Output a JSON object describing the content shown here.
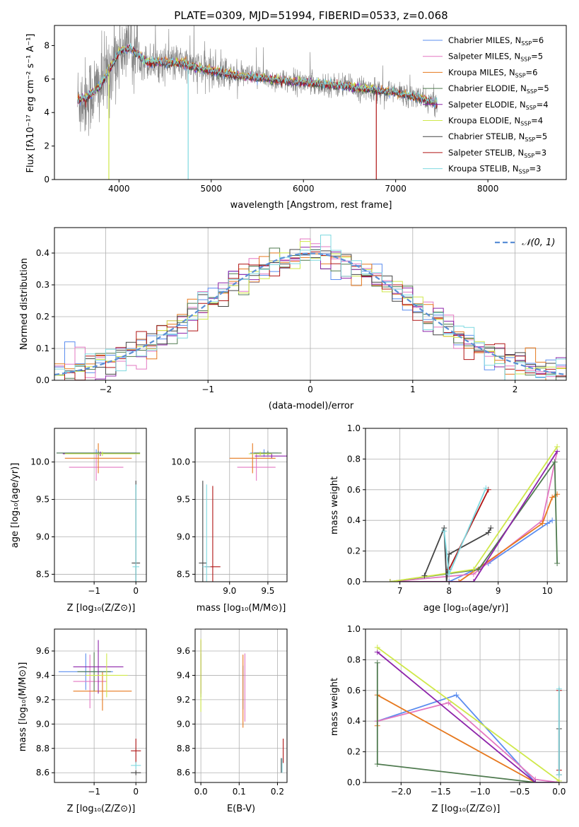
{
  "figure": {
    "title": "PLATE=0309, MJD=51994, FIBERID=0533, z=0.068"
  },
  "colors": {
    "chabrier_miles": "#5b8def",
    "salpeter_miles": "#e377c2",
    "kroupa_miles": "#e6781e",
    "chabrier_elodie": "#4f7a4f",
    "salpeter_elodie": "#8e24aa",
    "kroupa_elodie": "#cfe84a",
    "chabrier_stelib": "#444444",
    "salpeter_stelib": "#b01515",
    "kroupa_stelib": "#7fd9e0",
    "data": "#808080",
    "gaussian": "#5b8fd6",
    "grid": "#b0b0b0"
  },
  "chart_data": [
    {
      "id": "spectrum",
      "type": "line",
      "title": "PLATE=0309, MJD=51994, FIBERID=0533, z=0.068",
      "xlabel": "wavelength [Angstrom, rest frame]",
      "ylabel": "Flux [fλ10⁻¹⁷ erg cm⁻² s⁻¹ A⁻¹]",
      "xlim": [
        3300,
        8850
      ],
      "ylim": [
        0,
        9.2
      ],
      "xticks": [
        4000,
        5000,
        6000,
        7000,
        8000
      ],
      "yticks": [
        0,
        2,
        4,
        6,
        8
      ],
      "grid": false,
      "legend_position": "top-right",
      "legend": [
        {
          "name": "Chabrier MILES, N_SSP=6",
          "color_key": "chabrier_miles"
        },
        {
          "name": "Salpeter MILES, N_SSP=5",
          "color_key": "salpeter_miles"
        },
        {
          "name": "Kroupa MILES, N_SSP=6",
          "color_key": "kroupa_miles"
        },
        {
          "name": "Chabrier ELODIE, N_SSP=5",
          "color_key": "chabrier_elodie"
        },
        {
          "name": "Salpeter ELODIE, N_SSP=4",
          "color_key": "salpeter_elodie"
        },
        {
          "name": "Kroupa ELODIE, N_SSP=4",
          "color_key": "kroupa_elodie"
        },
        {
          "name": "Chabrier STELIB, N_SSP=5",
          "color_key": "chabrier_stelib"
        },
        {
          "name": "Salpeter STELIB, N_SSP=3",
          "color_key": "salpeter_stelib"
        },
        {
          "name": "Kroupa STELIB, N_SSP=3",
          "color_key": "kroupa_stelib"
        }
      ],
      "continuum": {
        "x": [
          3550,
          3650,
          3800,
          3900,
          4000,
          4100,
          4200,
          4300,
          4500,
          4700,
          4900,
          5100,
          5300,
          5600,
          6000,
          6400,
          6700,
          7000,
          7300,
          7450
        ],
        "y": [
          4.7,
          4.9,
          5.6,
          6.6,
          7.6,
          7.9,
          7.5,
          7.0,
          7.0,
          6.9,
          6.6,
          6.4,
          6.2,
          6.0,
          5.8,
          5.6,
          5.4,
          5.2,
          4.8,
          4.5
        ]
      },
      "absorption_lines": [
        {
          "x": 3890,
          "y": 0.0,
          "color_key": "kroupa_elodie"
        },
        {
          "x": 4750,
          "y": 0.0,
          "color_key": "kroupa_stelib"
        },
        {
          "x": 6790,
          "y": 0.0,
          "color_key": "salpeter_stelib"
        }
      ]
    },
    {
      "id": "residuals",
      "type": "line",
      "xlabel": "(data-model)/error",
      "ylabel": "Normed distribution",
      "xlim": [
        -2.5,
        2.5
      ],
      "ylim": [
        0,
        0.48
      ],
      "xticks": [
        -2,
        -1,
        0,
        1,
        2
      ],
      "yticks": [
        0.0,
        0.1,
        0.2,
        0.3,
        0.4
      ],
      "grid": true,
      "legend_position": "top-right",
      "legend": [
        {
          "name": "𝒩(0, 1)",
          "style": "dashed",
          "color_key": "gaussian"
        }
      ],
      "bin_width": 0.1,
      "reference": {
        "name": "𝒩(0, 1)",
        "type": "normal_pdf",
        "mean": 0,
        "sigma": 1
      }
    },
    {
      "id": "age_vs_Z",
      "type": "scatter",
      "xlabel": "Z [log₁₀(Z/Z⊙)]",
      "ylabel": "age  [log₁₀(age/yr)]",
      "xlim": [
        -1.95,
        0.25
      ],
      "ylim": [
        8.4,
        10.45
      ],
      "xticks": [
        -1,
        0
      ],
      "yticks": [
        8.5,
        9.0,
        9.5,
        10.0
      ],
      "grid": true,
      "points": [
        {
          "x": -0.95,
          "y": 10.12,
          "xerr": 0.95,
          "yerr": 0.05,
          "color_key": "chabrier_miles"
        },
        {
          "x": -0.95,
          "y": 9.93,
          "xerr": 0.65,
          "yerr": 0.18,
          "color_key": "salpeter_miles"
        },
        {
          "x": -0.9,
          "y": 10.05,
          "xerr": 0.8,
          "yerr": 0.2,
          "color_key": "kroupa_miles"
        },
        {
          "x": -0.9,
          "y": 10.12,
          "xerr": 1.0,
          "yerr": 0.03,
          "color_key": "chabrier_elodie"
        },
        {
          "x": -0.85,
          "y": 10.11,
          "xerr": 0.9,
          "yerr": 0.03,
          "color_key": "salpeter_elodie"
        },
        {
          "x": -0.8,
          "y": 10.11,
          "xerr": 0.9,
          "yerr": 0.03,
          "color_key": "kroupa_elodie"
        },
        {
          "x": 0.0,
          "y": 8.65,
          "xerr": 0.1,
          "yerr": 1.1,
          "color_key": "chabrier_stelib"
        },
        {
          "x": 0.0,
          "y": 8.6,
          "xerr": 0.08,
          "yerr": 1.1,
          "color_key": "kroupa_stelib"
        }
      ]
    },
    {
      "id": "age_vs_mass",
      "type": "scatter",
      "xlabel": "mass [log₁₀(M/M⊙)]",
      "xlim": [
        8.55,
        9.75
      ],
      "ylim": [
        8.4,
        10.45
      ],
      "xticks": [
        9.0,
        9.5
      ],
      "yticks": [
        8.5,
        9.0,
        9.5,
        10.0
      ],
      "grid": true,
      "points": [
        {
          "x": 9.45,
          "y": 10.12,
          "xerr": 0.18,
          "yerr": 0.05,
          "color_key": "chabrier_miles"
        },
        {
          "x": 9.35,
          "y": 9.93,
          "xerr": 0.25,
          "yerr": 0.18,
          "color_key": "salpeter_miles"
        },
        {
          "x": 9.3,
          "y": 10.05,
          "xerr": 0.3,
          "yerr": 0.2,
          "color_key": "kroupa_miles"
        },
        {
          "x": 9.5,
          "y": 10.12,
          "xerr": 0.18,
          "yerr": 0.03,
          "color_key": "chabrier_elodie"
        },
        {
          "x": 9.55,
          "y": 10.08,
          "xerr": 0.22,
          "yerr": 0.03,
          "color_key": "salpeter_elodie"
        },
        {
          "x": 9.4,
          "y": 10.11,
          "xerr": 0.15,
          "yerr": 0.03,
          "color_key": "kroupa_elodie"
        },
        {
          "x": 8.65,
          "y": 8.65,
          "xerr": 0.05,
          "yerr": 1.1,
          "color_key": "chabrier_stelib"
        },
        {
          "x": 8.78,
          "y": 8.6,
          "xerr": 0.1,
          "yerr": 1.08,
          "color_key": "salpeter_stelib"
        },
        {
          "x": 8.7,
          "y": 8.6,
          "xerr": 0.05,
          "yerr": 1.1,
          "color_key": "kroupa_stelib"
        }
      ]
    },
    {
      "id": "massweight_vs_age",
      "type": "line",
      "xlabel": "age  [log₁₀(age/yr)]",
      "ylabel": "mass weight",
      "xlim": [
        6.3,
        10.4
      ],
      "ylim": [
        0,
        1.0
      ],
      "xticks": [
        7,
        8,
        9,
        10
      ],
      "yticks": [
        0.0,
        0.2,
        0.4,
        0.6,
        0.8,
        1.0
      ],
      "grid": true,
      "series": [
        {
          "color_key": "chabrier_miles",
          "x": [
            6.8,
            8.0,
            8.8,
            10.0,
            10.1
          ],
          "y": [
            0.0,
            0.0,
            0.12,
            0.38,
            0.4
          ]
        },
        {
          "color_key": "salpeter_miles",
          "x": [
            6.8,
            8.5,
            9.9,
            10.2
          ],
          "y": [
            0.0,
            0.05,
            0.4,
            0.85
          ]
        },
        {
          "color_key": "kroupa_miles",
          "x": [
            6.8,
            8.2,
            9.9,
            10.1,
            10.2
          ],
          "y": [
            0.0,
            0.0,
            0.38,
            0.55,
            0.57
          ]
        },
        {
          "color_key": "chabrier_elodie",
          "x": [
            6.8,
            8.6,
            10.15,
            10.2
          ],
          "y": [
            0.0,
            0.08,
            0.78,
            0.12
          ]
        },
        {
          "color_key": "salpeter_elodie",
          "x": [
            6.8,
            8.5,
            10.2
          ],
          "y": [
            0.0,
            0.0,
            0.85
          ]
        },
        {
          "color_key": "kroupa_elodie",
          "x": [
            6.8,
            8.5,
            10.2
          ],
          "y": [
            0.0,
            0.08,
            0.88
          ]
        },
        {
          "color_key": "chabrier_stelib",
          "x": [
            7.5,
            7.9,
            7.95,
            8.0,
            8.8,
            8.85
          ],
          "y": [
            0.04,
            0.35,
            0.0,
            0.18,
            0.32,
            0.35
          ]
        },
        {
          "color_key": "salpeter_stelib",
          "x": [
            8.0,
            8.8
          ],
          "y": [
            0.08,
            0.6
          ]
        },
        {
          "color_key": "kroupa_stelib",
          "x": [
            7.9,
            8.0,
            8.75
          ],
          "y": [
            0.33,
            0.05,
            0.61
          ]
        }
      ]
    },
    {
      "id": "mass_vs_Z",
      "type": "scatter",
      "xlabel": "Z [log₁₀(Z/Z⊙)]",
      "ylabel": "mass [log₁₀(M/M⊙)]",
      "xlim": [
        -1.95,
        0.25
      ],
      "ylim": [
        8.52,
        9.78
      ],
      "xticks": [
        -1,
        0
      ],
      "yticks": [
        8.6,
        8.8,
        9.0,
        9.2,
        9.4,
        9.6
      ],
      "grid": true,
      "points": [
        {
          "x": -1.2,
          "y": 9.43,
          "xerr": 0.65,
          "yerr": 0.15,
          "color_key": "chabrier_miles"
        },
        {
          "x": -1.1,
          "y": 9.35,
          "xerr": 0.4,
          "yerr": 0.22,
          "color_key": "salpeter_miles"
        },
        {
          "x": -0.8,
          "y": 9.27,
          "xerr": 0.7,
          "yerr": 0.16,
          "color_key": "kroupa_miles"
        },
        {
          "x": -1.0,
          "y": 9.43,
          "xerr": 0.4,
          "yerr": 0.16,
          "color_key": "chabrier_elodie"
        },
        {
          "x": -0.9,
          "y": 9.47,
          "xerr": 0.6,
          "yerr": 0.22,
          "color_key": "salpeter_elodie"
        },
        {
          "x": -0.7,
          "y": 9.4,
          "xerr": 0.5,
          "yerr": 0.18,
          "color_key": "kroupa_elodie"
        },
        {
          "x": 0.0,
          "y": 8.6,
          "xerr": 0.12,
          "yerr": 0.02,
          "color_key": "chabrier_stelib"
        },
        {
          "x": 0.0,
          "y": 8.78,
          "xerr": 0.12,
          "yerr": 0.1,
          "color_key": "salpeter_stelib"
        },
        {
          "x": 0.0,
          "y": 8.66,
          "xerr": 0.12,
          "yerr": 0.03,
          "color_key": "kroupa_stelib"
        }
      ]
    },
    {
      "id": "mass_vs_ebv",
      "type": "scatter",
      "xlabel": "E(B-V)",
      "xlim": [
        -0.015,
        0.225
      ],
      "ylim": [
        8.52,
        9.78
      ],
      "xticks": [
        0.0,
        0.1,
        0.2
      ],
      "yticks": [
        8.6,
        8.8,
        9.0,
        9.2,
        9.4,
        9.6
      ],
      "grid": true,
      "points": [
        {
          "x": 0.11,
          "y": 9.3,
          "xerr": 0.0,
          "yerr": 0.18,
          "color_key": "chabrier_miles"
        },
        {
          "x": 0.115,
          "y": 9.3,
          "xerr": 0.0,
          "yerr": 0.28,
          "color_key": "salpeter_miles"
        },
        {
          "x": 0.11,
          "y": 9.27,
          "xerr": 0.0,
          "yerr": 0.3,
          "color_key": "kroupa_miles"
        },
        {
          "x": 0.0,
          "y": 9.4,
          "xerr": 0.0,
          "yerr": 0.18,
          "color_key": "chabrier_elodie"
        },
        {
          "x": 0.0,
          "y": 9.47,
          "xerr": 0.0,
          "yerr": 0.22,
          "color_key": "salpeter_elodie"
        },
        {
          "x": 0.0,
          "y": 9.4,
          "xerr": 0.0,
          "yerr": 0.3,
          "color_key": "kroupa_elodie"
        },
        {
          "x": 0.21,
          "y": 8.66,
          "xerr": 0.0,
          "yerr": 0.06,
          "color_key": "chabrier_stelib"
        },
        {
          "x": 0.215,
          "y": 8.78,
          "xerr": 0.0,
          "yerr": 0.1,
          "color_key": "salpeter_stelib"
        },
        {
          "x": 0.212,
          "y": 8.66,
          "xerr": 0.0,
          "yerr": 0.06,
          "color_key": "kroupa_stelib"
        }
      ]
    },
    {
      "id": "massweight_vs_Z",
      "type": "line",
      "xlabel": "Z [log₁₀(Z/Z⊙)]",
      "ylabel": "mass weight",
      "xlim": [
        -2.45,
        0.1
      ],
      "ylim": [
        0,
        1.0
      ],
      "xticks": [
        -2.0,
        -1.5,
        -1.0,
        -0.5,
        0.0
      ],
      "yticks": [
        0.0,
        0.2,
        0.4,
        0.6,
        0.8,
        1.0
      ],
      "grid": true,
      "series": [
        {
          "color_key": "chabrier_miles",
          "x": [
            -2.3,
            -1.3,
            -0.3,
            0.0
          ],
          "y": [
            0.4,
            0.57,
            0.0,
            0.0
          ]
        },
        {
          "color_key": "salpeter_miles",
          "x": [
            -2.3,
            -1.4,
            -0.3,
            0.0
          ],
          "y": [
            0.4,
            0.52,
            0.02,
            0.0
          ]
        },
        {
          "color_key": "kroupa_miles",
          "x": [
            -2.3,
            -2.3,
            -0.3,
            0.0
          ],
          "y": [
            0.37,
            0.57,
            0.0,
            0.0
          ]
        },
        {
          "color_key": "chabrier_elodie",
          "x": [
            -2.3,
            -2.3,
            -0.3,
            0.0
          ],
          "y": [
            0.78,
            0.12,
            0.0,
            0.0
          ]
        },
        {
          "color_key": "salpeter_elodie",
          "x": [
            -2.3,
            -0.3,
            0.0
          ],
          "y": [
            0.85,
            0.0,
            0.0
          ]
        },
        {
          "color_key": "kroupa_elodie",
          "x": [
            -2.3,
            0.0
          ],
          "y": [
            0.88,
            0.01
          ]
        },
        {
          "color_key": "chabrier_stelib",
          "x": [
            0.0,
            0.0
          ],
          "y": [
            0.05,
            0.35
          ]
        },
        {
          "color_key": "salpeter_stelib",
          "x": [
            0.0,
            0.0
          ],
          "y": [
            0.08,
            0.6
          ]
        },
        {
          "color_key": "kroupa_stelib",
          "x": [
            0.0,
            0.0
          ],
          "y": [
            0.05,
            0.61
          ]
        }
      ]
    }
  ]
}
